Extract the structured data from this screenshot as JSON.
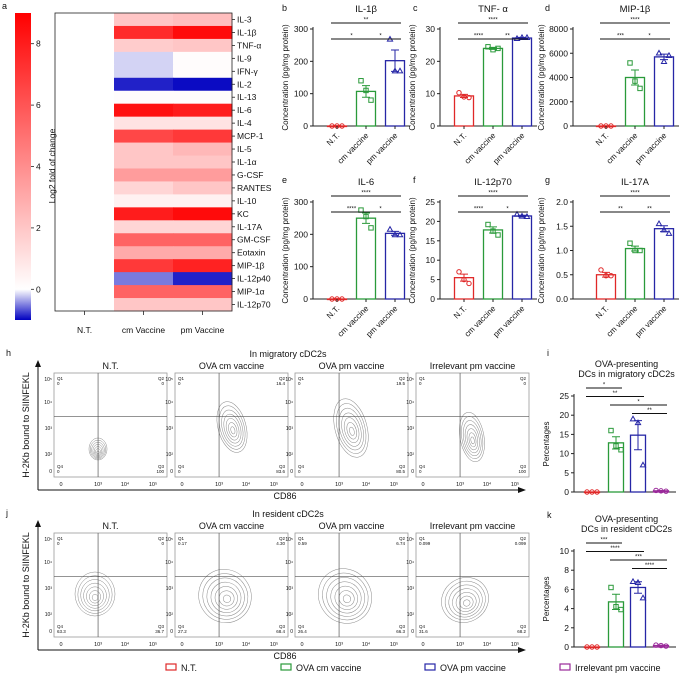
{
  "panel_letters": [
    "a",
    "b",
    "c",
    "d",
    "e",
    "f",
    "g",
    "h",
    "i",
    "j",
    "k"
  ],
  "colors": {
    "nt": "#e02828",
    "cm": "#2a9a3a",
    "pm": "#2626a6",
    "irr": "#9a2a9a",
    "heat_high": "#ff0000",
    "heat_low": "#0000c0"
  },
  "heatmap": {
    "colorbar_label": "Log2 fold of change",
    "colorbar_ticks": [
      0,
      2,
      4,
      6,
      8
    ],
    "colorbar_range": [
      -1,
      9
    ],
    "columns": [
      "N.T.",
      "cm Vaccine",
      "pm Vaccine"
    ],
    "rows": [
      {
        "name": "IL-3",
        "values": [
          0,
          2.0,
          2.3
        ]
      },
      {
        "name": "IL-1β",
        "values": [
          0,
          7.5,
          8.6
        ]
      },
      {
        "name": "TNF-α",
        "values": [
          0,
          1.8,
          2.0
        ]
      },
      {
        "name": "IL-9",
        "values": [
          0,
          -0.2,
          0.1
        ]
      },
      {
        "name": "IFN-γ",
        "values": [
          0,
          -0.2,
          0.1
        ]
      },
      {
        "name": "IL-2",
        "values": [
          0,
          -1.0,
          -1.1
        ]
      },
      {
        "name": "IL-13",
        "values": [
          0,
          0.1,
          0.1
        ]
      },
      {
        "name": "IL-6",
        "values": [
          0,
          8.4,
          8.0
        ]
      },
      {
        "name": "IL-4",
        "values": [
          0,
          1.0,
          1.0
        ]
      },
      {
        "name": "MCP-1",
        "values": [
          0,
          6.5,
          7.0
        ]
      },
      {
        "name": "IL-5",
        "values": [
          0,
          2.0,
          2.5
        ]
      },
      {
        "name": "IL-1α",
        "values": [
          0,
          2.0,
          2.0
        ]
      },
      {
        "name": "G-CSF",
        "values": [
          0,
          3.5,
          3.5
        ]
      },
      {
        "name": "RANTES",
        "values": [
          0,
          1.5,
          2.0
        ]
      },
      {
        "name": "IL-10",
        "values": [
          0,
          0.5,
          0.5
        ]
      },
      {
        "name": "KC",
        "values": [
          0,
          8.0,
          8.6
        ]
      },
      {
        "name": "IL-17A",
        "values": [
          0,
          1.5,
          1.5
        ]
      },
      {
        "name": "GM-CSF",
        "values": [
          0,
          5.5,
          5.5
        ]
      },
      {
        "name": "Eotaxin",
        "values": [
          0,
          3.0,
          3.0
        ]
      },
      {
        "name": "MIP-1β",
        "values": [
          0,
          7.0,
          7.8
        ]
      },
      {
        "name": "IL-12p40",
        "values": [
          0,
          -0.6,
          -1.0
        ]
      },
      {
        "name": "MIP-1α",
        "values": [
          0,
          5.5,
          5.5
        ]
      },
      {
        "name": "IL-12p70",
        "values": [
          0,
          2.0,
          2.0
        ]
      }
    ]
  },
  "chart_data": [
    {
      "id": "b",
      "type": "bar",
      "title": "IL-1β",
      "ylabel": "Concentration (pg/mg protein)",
      "categories": [
        "N.T.",
        "cm vaccine",
        "pm vaccine"
      ],
      "ylim": [
        0,
        300
      ],
      "yticks": [
        0,
        100,
        200,
        300
      ],
      "values": [
        0,
        107,
        202
      ],
      "sem": [
        1,
        18,
        33
      ],
      "points": [
        [
          0,
          0,
          0
        ],
        [
          140,
          110,
          80
        ],
        [
          268,
          170,
          170
        ]
      ],
      "significance": [
        {
          "from": 0,
          "to": 2,
          "label": "**"
        },
        {
          "from": 0,
          "to": 1,
          "label": "*"
        },
        {
          "from": 1,
          "to": 2,
          "label": "*"
        }
      ]
    },
    {
      "id": "c",
      "type": "bar",
      "title": "TNF- α",
      "ylabel": "Concentration (pg/mg protein)",
      "categories": [
        "N.T.",
        "cm vaccine",
        "pm vaccine"
      ],
      "ylim": [
        0,
        30
      ],
      "yticks": [
        0,
        10,
        20,
        30
      ],
      "values": [
        9.3,
        24,
        27.2
      ],
      "sem": [
        0.5,
        0.3,
        0.2
      ],
      "points": [
        [
          10.3,
          9,
          8.8
        ],
        [
          24.5,
          23.6,
          24
        ],
        [
          27,
          27.3,
          27.3
        ]
      ],
      "significance": [
        {
          "from": 0,
          "to": 2,
          "label": "****"
        },
        {
          "from": 0,
          "to": 1,
          "label": "****"
        },
        {
          "from": 1,
          "to": 2,
          "label": "**"
        }
      ]
    },
    {
      "id": "d",
      "type": "bar",
      "title": "MIP-1β",
      "ylabel": "Concentration (pg/mg protein)",
      "categories": [
        "N.T.",
        "cm vaccine",
        "pm vaccine"
      ],
      "ylim": [
        0,
        8000
      ],
      "yticks": [
        0,
        2000,
        4000,
        6000,
        8000
      ],
      "values": [
        0,
        4000,
        5700
      ],
      "sem": [
        20,
        620,
        230
      ],
      "points": [
        [
          0,
          0,
          0
        ],
        [
          5200,
          3700,
          3100
        ],
        [
          6000,
          5300,
          5800
        ]
      ],
      "significance": [
        {
          "from": 0,
          "to": 2,
          "label": "****"
        },
        {
          "from": 0,
          "to": 1,
          "label": "***"
        },
        {
          "from": 1,
          "to": 2,
          "label": "*"
        }
      ]
    },
    {
      "id": "e",
      "type": "bar",
      "title": "IL-6",
      "ylabel": "Concentration (pg/mg protein)",
      "categories": [
        "N.T.",
        "cm vaccine",
        "pm vaccine"
      ],
      "ylim": [
        0,
        300
      ],
      "yticks": [
        0,
        100,
        200,
        300
      ],
      "values": [
        0,
        250,
        203
      ],
      "sem": [
        1,
        16,
        6
      ],
      "points": [
        [
          0,
          0,
          0
        ],
        [
          275,
          255,
          220
        ],
        [
          215,
          198,
          198
        ]
      ],
      "significance": [
        {
          "from": 0,
          "to": 2,
          "label": "****"
        },
        {
          "from": 0,
          "to": 1,
          "label": "****"
        },
        {
          "from": 1,
          "to": 2,
          "label": "*"
        }
      ]
    },
    {
      "id": "f",
      "type": "bar",
      "title": "IL-12p70",
      "ylabel": "Concentration (pg/mg protein)",
      "categories": [
        "N.T.",
        "cm vaccine",
        "pm vaccine"
      ],
      "ylim": [
        0,
        25
      ],
      "yticks": [
        0,
        5,
        10,
        15,
        20,
        25
      ],
      "values": [
        5.5,
        17.8,
        21.4
      ],
      "sem": [
        0.9,
        0.8,
        0.2
      ],
      "points": [
        [
          7,
          5,
          4
        ],
        [
          19.2,
          17.5,
          16.5
        ],
        [
          21.8,
          21.3,
          21.2
        ]
      ],
      "significance": [
        {
          "from": 0,
          "to": 2,
          "label": "****"
        },
        {
          "from": 0,
          "to": 1,
          "label": "****"
        },
        {
          "from": 1,
          "to": 2,
          "label": "*"
        }
      ]
    },
    {
      "id": "g",
      "type": "bar",
      "title": "IL-17A",
      "ylabel": "Concentration (pg/mg protein)",
      "categories": [
        "N.T.",
        "cm vaccine",
        "pm vaccine"
      ],
      "ylim": [
        0,
        2.0
      ],
      "yticks": [
        "0.0",
        "0.5",
        "1.0",
        "1.5",
        "2.0"
      ],
      "values": [
        0.5,
        1.04,
        1.45
      ],
      "sem": [
        0.05,
        0.05,
        0.06
      ],
      "points": [
        [
          0.6,
          0.48,
          0.48
        ],
        [
          1.15,
          1.0,
          1.0
        ],
        [
          1.55,
          1.42,
          1.35
        ]
      ],
      "significance": [
        {
          "from": 0,
          "to": 2,
          "label": "****"
        },
        {
          "from": 0,
          "to": 1,
          "label": "**"
        },
        {
          "from": 1,
          "to": 2,
          "label": "**"
        }
      ]
    },
    {
      "id": "i",
      "type": "bar",
      "title_lines": [
        "OVA-presenting",
        "DCs in migratory cDC2s"
      ],
      "ylabel": "Percentages",
      "categories": [
        "N.T.",
        "OVA cm vaccine",
        "OVA pm vaccine",
        "Irrelevant pm vaccine"
      ],
      "ylim": [
        0,
        25
      ],
      "yticks": [
        0,
        5,
        10,
        15,
        20,
        25
      ],
      "values": [
        0,
        12.8,
        14.8,
        0.3
      ],
      "sem": [
        0,
        1.6,
        3.8,
        0.1
      ],
      "points": [
        [
          0,
          0,
          0
        ],
        [
          16,
          12,
          11
        ],
        [
          19,
          18,
          7
        ],
        [
          0.4,
          0.3,
          0.2
        ]
      ],
      "significance": [
        {
          "from": 0,
          "to": 1,
          "label": "*"
        },
        {
          "from": 0,
          "to": 2,
          "label": "**"
        },
        {
          "from": 1,
          "to": 3,
          "label": "*"
        },
        {
          "from": 2,
          "to": 3,
          "label": "**"
        }
      ]
    },
    {
      "id": "k",
      "type": "bar",
      "title_lines": [
        "OVA-presenting",
        "DCs in resident cDC2s"
      ],
      "ylabel": "Percentages",
      "categories": [
        "N.T.",
        "OVA cm vaccine",
        "OVA pm vaccine",
        "Irrelevant pm vaccine"
      ],
      "ylim": [
        0,
        10
      ],
      "yticks": [
        0,
        2,
        4,
        6,
        8,
        10
      ],
      "values": [
        0,
        4.7,
        6.2,
        0.15
      ],
      "sem": [
        0,
        0.8,
        0.6,
        0.05
      ],
      "points": [
        [
          0,
          0,
          0
        ],
        [
          6.2,
          4.2,
          3.9
        ],
        [
          6.8,
          6.7,
          5.1
        ],
        [
          0.2,
          0.15,
          0.1
        ]
      ],
      "significance": [
        {
          "from": 0,
          "to": 1,
          "label": "***"
        },
        {
          "from": 0,
          "to": 2,
          "label": "****"
        },
        {
          "from": 1,
          "to": 3,
          "label": "***"
        },
        {
          "from": 2,
          "to": 3,
          "label": "****"
        }
      ]
    }
  ],
  "flow": {
    "y_axis_label": "H-2Kb bound to SIINFEKL",
    "x_axis_label": "CD86",
    "x_ticks": [
      "0",
      "10³",
      "10⁴",
      "10⁵"
    ],
    "y_ticks": [
      "10⁵",
      "10⁴",
      "10³",
      "10²",
      "0"
    ],
    "panels": [
      "N.T.",
      "OVA cm vaccine",
      "OVA pm vaccine",
      "Irrelevant pm vaccine"
    ],
    "rows": [
      {
        "title": "In migratory cDC2s",
        "quadrants": [
          {
            "Q1": "0",
            "Q2": "0",
            "Q3": "100",
            "Q4": "0"
          },
          {
            "Q1": "0",
            "Q2": "16.4",
            "Q3": "83.6",
            "Q4": "0"
          },
          {
            "Q1": "0",
            "Q2": "19.5",
            "Q3": "80.5",
            "Q4": "0"
          },
          {
            "Q1": "0",
            "Q2": "0",
            "Q3": "100",
            "Q4": "0"
          }
        ]
      },
      {
        "title": "In resident cDC2s",
        "quadrants": [
          {
            "Q1": "0",
            "Q2": "0",
            "Q3": "36.7",
            "Q4": "63.3"
          },
          {
            "Q1": "0.17",
            "Q2": "4.30",
            "Q3": "68.4",
            "Q4": "27.2"
          },
          {
            "Q1": "0.59",
            "Q2": "6.74",
            "Q3": "66.3",
            "Q4": "26.4"
          },
          {
            "Q1": "0.099",
            "Q2": "0.099",
            "Q3": "68.2",
            "Q4": "31.6"
          }
        ]
      }
    ]
  },
  "legend": [
    "N.T.",
    "OVA cm vaccine",
    "OVA pm vaccine",
    "Irrelevant pm vaccine"
  ]
}
